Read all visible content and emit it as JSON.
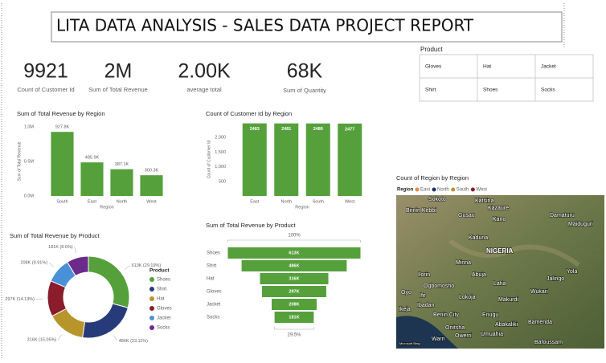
{
  "title": "LITA DATA ANALYSIS - SALES DATA PROJECT REPORT",
  "kpis": [
    {
      "value": "9921",
      "label": "Count of Customer Id"
    },
    {
      "value": "2M",
      "label": "Sum of Total Revenue"
    },
    {
      "value": "2.00K",
      "label": "average total"
    },
    {
      "value": "68K",
      "label": "Sum of Quantity"
    }
  ],
  "slicer": {
    "title": "Product",
    "items": [
      "Gloves",
      "Hat",
      "Jacket",
      "Shirt",
      "Shoes",
      "Socks"
    ]
  },
  "chart_data": [
    {
      "type": "bar",
      "title": "Sum of Total Revenue by Region",
      "x_label": "Region",
      "y_label": "Sum of Total Revenue",
      "categories": [
        "South",
        "East",
        "North",
        "West"
      ],
      "values": [
        927800,
        485900,
        387100,
        300300
      ],
      "value_labels": [
        "927.8K",
        "485.9K",
        "387.1K",
        "300.3K"
      ],
      "color": "#55a03b",
      "ylim": [
        0,
        1000000
      ],
      "yticks": [
        {
          "value": 0,
          "label": "0.0M"
        },
        {
          "value": 500000,
          "label": "0.5M"
        },
        {
          "value": 1000000,
          "label": "1.0M"
        }
      ]
    },
    {
      "type": "bar",
      "title": "Count of Customer Id by Region",
      "x_label": "Region",
      "y_label": "Count of Customer Id",
      "categories": [
        "East",
        "North",
        "South",
        "West"
      ],
      "values": [
        2483,
        2481,
        2480,
        2477
      ],
      "color": "#55a03b",
      "ylim": [
        0,
        2500
      ],
      "yticks": [
        500,
        {
          "value": 1000,
          "label": "1,000"
        },
        {
          "value": 1500,
          "label": "1,500"
        },
        {
          "value": 2000,
          "label": "2,000"
        }
      ]
    },
    {
      "type": "donut",
      "title": "Sum of Total Revenue by Product",
      "legend_title": "Product",
      "categories": [
        "Shoes",
        "Shirt",
        "Hat",
        "Gloves",
        "Jacket",
        "Socks"
      ],
      "values": [
        613000,
        486000,
        316000,
        297000,
        208000,
        181000
      ],
      "value_labels": [
        "613K (29.19%)",
        "486K (23.11%)",
        "316K (15.05%)",
        "297K (14.13%)",
        "208K (9.91%)",
        "181K (8.6%)"
      ],
      "colors": [
        "#55a03b",
        "#273b7a",
        "#b7952b",
        "#8a1c2b",
        "#4a90d9",
        "#6a2b8c"
      ]
    },
    {
      "type": "funnel",
      "title": "Sum of Total Revenue by Product",
      "top_label": "100%",
      "bottom_label": "29.5%",
      "categories": [
        "Shoes",
        "Shirt",
        "Hat",
        "Gloves",
        "Jacket",
        "Socks"
      ],
      "values": [
        613000,
        486000,
        316000,
        297000,
        208000,
        181000
      ],
      "value_labels": [
        "613K",
        "486K",
        "316K",
        "297K",
        "208K",
        "181K"
      ],
      "color": "#55a03b"
    },
    {
      "type": "map",
      "title": "Count of Region by Region",
      "legend_title": "Region",
      "series": [
        {
          "name": "East",
          "color": "#e8884a"
        },
        {
          "name": "North",
          "color": "#1f2f6b"
        },
        {
          "name": "South",
          "color": "#b7952b"
        },
        {
          "name": "West",
          "color": "#8a1c2b"
        }
      ],
      "place_labels": [
        "Sokoto",
        "Katsina",
        "Birnin Kebbi",
        "Gusau",
        "Kazaure",
        "Kano",
        "Damaturu",
        "Maiduguri",
        "Kaduna",
        "NIGERIA",
        "Minna",
        "Ilorin",
        "Abuja",
        "Jalingo",
        "Yola",
        "Oyo",
        "Ogbomosho",
        "Ife",
        "Lafia",
        "Ibadan",
        "Lokoja",
        "Wukari",
        "Makurdi",
        "Ikeja",
        "Benin City",
        "Enugu",
        "Abakaliki",
        "Bamenda",
        "Onitsha",
        "Owerri",
        "Umuahia",
        "Warri",
        "Bafoussam"
      ],
      "attribution": "Microsoft Bing"
    }
  ]
}
